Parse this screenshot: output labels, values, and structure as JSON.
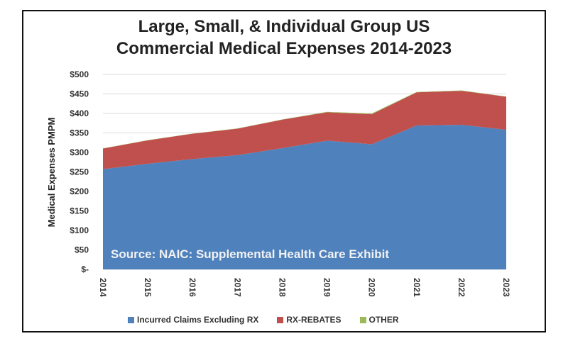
{
  "chart_data": {
    "type": "area",
    "stacked": true,
    "title": "Large, Small, & Individual Group US Commercial Medical Expenses 2014-2023",
    "title_lines": [
      "Large, Small, & Individual Group US",
      "Commercial Medical Expenses 2014-2023"
    ],
    "ylabel": "Medical Expenses PMPM",
    "xlabel": "",
    "annotation": "Source: NAIC: Supplemental Health Care Exhibit",
    "categories": [
      "2014",
      "2015",
      "2016",
      "2017",
      "2018",
      "2019",
      "2020",
      "2021",
      "2022",
      "2023"
    ],
    "ylim": [
      0,
      500
    ],
    "yticks": [
      "$-",
      "$50",
      "$100",
      "$150",
      "$200",
      "$250",
      "$300",
      "$350",
      "$400",
      "$450",
      "$500"
    ],
    "grid": true,
    "legend_position": "bottom",
    "series": [
      {
        "name": "Incurred Claims Excluding RX",
        "color": "#4f81bd",
        "values": [
          257,
          271,
          283,
          293,
          311,
          330,
          321,
          369,
          371,
          358
        ]
      },
      {
        "name": "RX-REBATES",
        "color": "#c0504d",
        "values": [
          53,
          60,
          65,
          68,
          73,
          73,
          77,
          85,
          87,
          85
        ]
      },
      {
        "name": "OTHER",
        "color": "#9bbb59",
        "values": [
          0.5,
          0.5,
          0.5,
          0.5,
          0.5,
          1,
          2,
          1,
          1,
          0.5
        ]
      }
    ]
  }
}
